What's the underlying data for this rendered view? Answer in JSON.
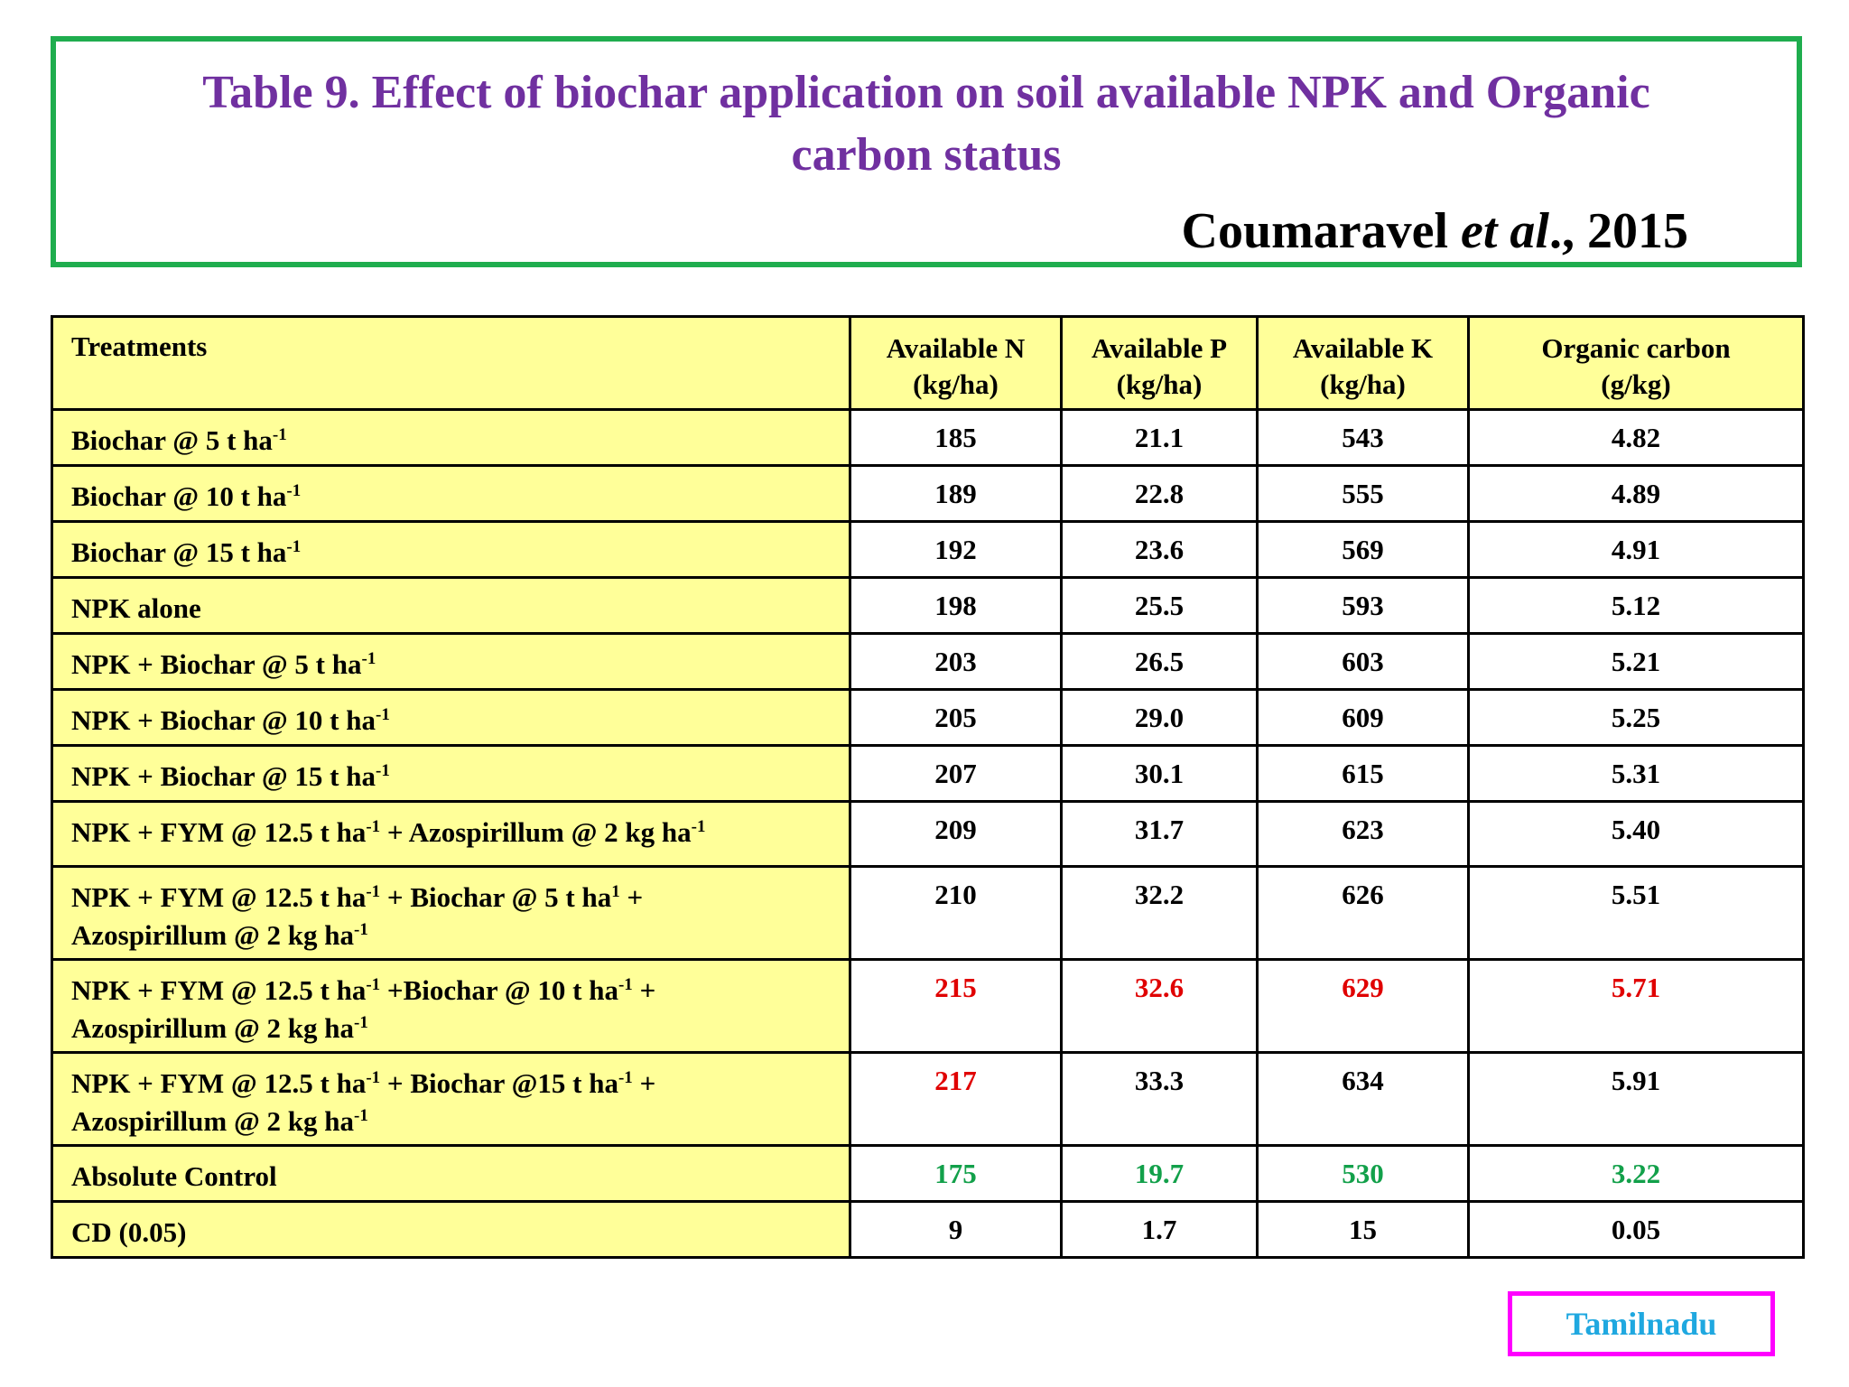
{
  "title": {
    "line1": "Table 9. Effect of biochar application on soil available NPK and Organic",
    "line2": "carbon status"
  },
  "citation": {
    "author": "Coumaravel ",
    "etal": "et al",
    "suffix": "., 2015"
  },
  "table": {
    "headers": {
      "treatments": "Treatments",
      "n": [
        "Available N",
        "(kg/ha)"
      ],
      "p": [
        "Available P",
        "(kg/ha)"
      ],
      "k": [
        "Available K",
        "(kg/ha)"
      ],
      "oc": [
        "Organic carbon",
        "(g/kg)"
      ]
    },
    "sup": "-1",
    "sup_no_minus": "1",
    "rows": [
      {
        "t": "Biochar @ 5 t ha",
        "n": "185",
        "p": "21.1",
        "k": "543",
        "oc": "4.82"
      },
      {
        "t": "Biochar @ 10 t ha",
        "n": "189",
        "p": "22.8",
        "k": "555",
        "oc": "4.89"
      },
      {
        "t": "Biochar @ 15 t ha",
        "n": "192",
        "p": "23.6",
        "k": "569",
        "oc": "4.91"
      },
      {
        "t": "NPK alone",
        "n": "198",
        "p": "25.5",
        "k": "593",
        "oc": "5.12"
      },
      {
        "t": "NPK +  Biochar @ 5 t ha",
        "n": "203",
        "p": "26.5",
        "k": "603",
        "oc": "5.21"
      },
      {
        "t": "NPK + Biochar @ 10 t  ha",
        "n": "205",
        "p": "29.0",
        "k": "609",
        "oc": "5.25"
      },
      {
        "t": "NPK + Biochar @ 15 t  ha",
        "n": "207",
        "p": "30.1",
        "k": "615",
        "oc": "5.31"
      },
      {
        "t1": "NPK + FYM @ 12.5 t  ha",
        "t2": " + Azospirillum @ 2 kg  ha",
        "n": "209",
        "p": "31.7",
        "k": "623",
        "oc": "5.40"
      },
      {
        "t1": "NPK + FYM @ 12.5 t ha",
        "t2": " + Biochar @ 5 t ha",
        "t3": " +",
        "t4": "Azospirillum @ 2 kg ha",
        "n": "210",
        "p": "32.2",
        "k": "626",
        "oc": "5.51"
      },
      {
        "t1": "NPK + FYM @ 12.5 t ha",
        "t2": " +Biochar @ 10 t ha",
        "t3": "  +",
        "t4": "Azospirillum @ 2 kg ha",
        "n": "215",
        "p": "32.6",
        "k": "629",
        "oc": "5.71"
      },
      {
        "t1": "NPK + FYM @ 12.5 t ha",
        "t2": " + Biochar @15 t ha",
        "t3": " +",
        "t4": "Azospirillum @ 2 kg ha",
        "n": "217",
        "p": "33.3",
        "k": "634",
        "oc": "5.91"
      },
      {
        "t": "Absolute Control",
        "n": "175",
        "p": "19.7",
        "k": "530",
        "oc": "3.22"
      },
      {
        "t": "CD (0.05)",
        "n": "9",
        "p": "1.7",
        "k": "15",
        "oc": "0.05"
      }
    ]
  },
  "location": "Tamilnadu",
  "colors": {
    "title": "#7030a0",
    "title_border": "#1fad4e",
    "table_fill": "#ffff99",
    "highlight_max": "#e00000",
    "highlight_control": "#12a04a",
    "location_border": "#ff00ff",
    "location_text": "#1fa8e0"
  }
}
